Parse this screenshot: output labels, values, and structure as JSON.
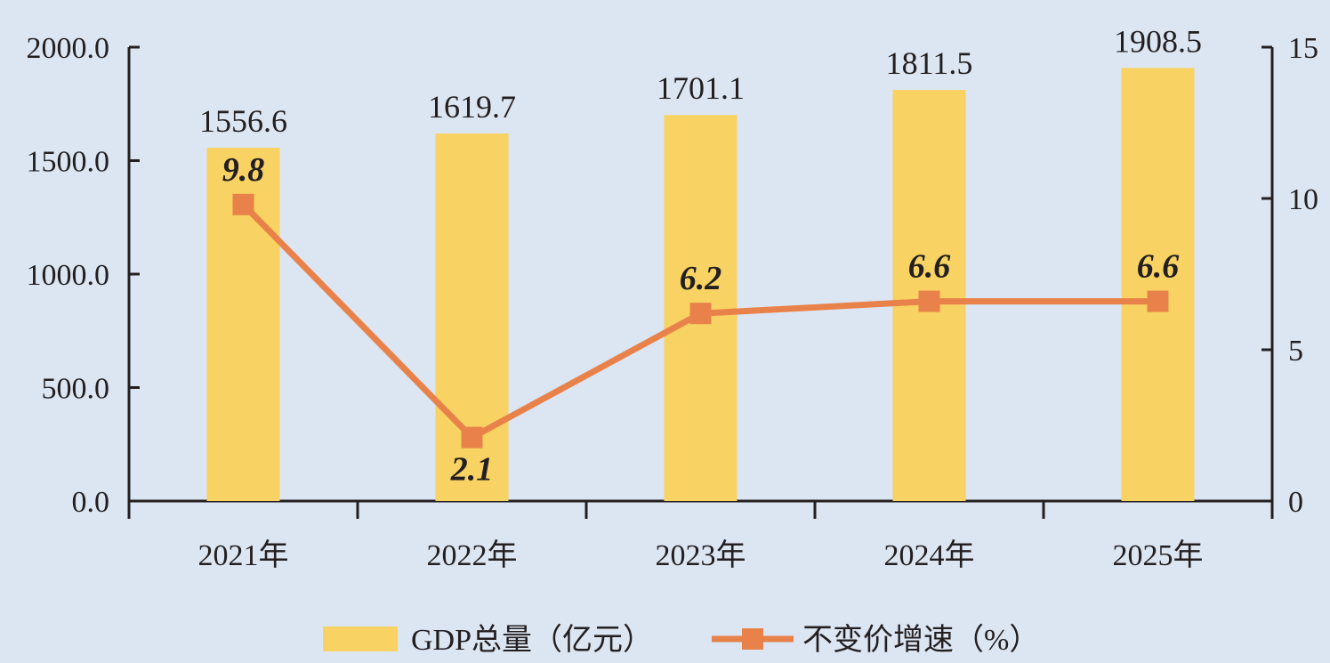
{
  "chart_data": {
    "type": "bar",
    "categories": [
      "2021年",
      "2022年",
      "2023年",
      "2024年",
      "2025年"
    ],
    "series": [
      {
        "name": "GDP总量（亿元）",
        "type": "bar",
        "axis": "left",
        "values": [
          1556.6,
          1619.7,
          1701.1,
          1811.5,
          1908.5
        ],
        "labels": [
          "1556.6",
          "1619.7",
          "1701.1",
          "1811.5",
          "1908.5"
        ],
        "color": "#f8d262"
      },
      {
        "name": "不变价增速（%）",
        "type": "line",
        "axis": "right",
        "values": [
          9.8,
          2.1,
          6.2,
          6.6,
          6.6
        ],
        "labels": [
          "9.8",
          "2.1",
          "6.2",
          "6.6",
          "6.6"
        ],
        "color": "#e8824a"
      }
    ],
    "y_left": {
      "min": 0,
      "max": 2000,
      "ticks": [
        0,
        500,
        1000,
        1500,
        2000
      ],
      "tick_labels": [
        "0.0",
        "500.0",
        "1000.0",
        "1500.0",
        "2000.0"
      ]
    },
    "y_right": {
      "min": 0,
      "max": 15,
      "ticks": [
        0,
        5,
        10,
        15
      ],
      "tick_labels": [
        "0",
        "5",
        "10",
        "15"
      ]
    },
    "title": "",
    "xlabel": "",
    "ylabel": "",
    "grid": false,
    "legend_position": "bottom-center"
  }
}
